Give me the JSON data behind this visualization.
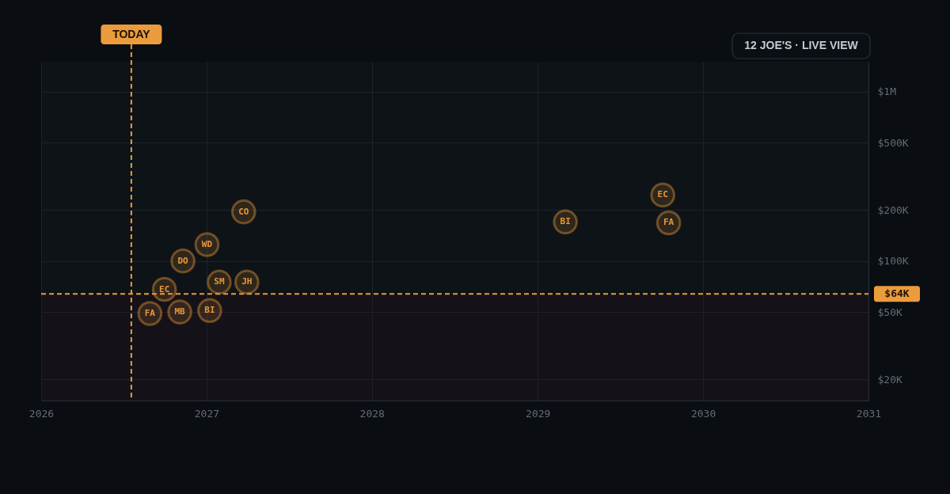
{
  "chart_data": {
    "type": "scatter",
    "marker": "circle",
    "color": "#e8973a",
    "x": [
      "2026-08-29",
      "2026-09-30",
      "2026-11-03",
      "2026-11-10",
      "2027-01-02",
      "2027-01-08",
      "2027-01-29",
      "2027-03-24",
      "2027-03-31",
      "2029-03-03",
      "2029-10-04",
      "2029-10-17"
    ],
    "values": [
      49000,
      68000,
      50000,
      100000,
      125000,
      51000,
      75000,
      195000,
      75000,
      170000,
      245000,
      168000
    ],
    "annotations": [
      {
        "text": "FA",
        "x": "2026-08-29",
        "y": 49000
      },
      {
        "text": "EC",
        "x": "2026-09-30",
        "y": 68000
      },
      {
        "text": "MB",
        "x": "2026-11-03",
        "y": 50000
      },
      {
        "text": "DO",
        "x": "2026-11-10",
        "y": 100000
      },
      {
        "text": "WD",
        "x": "2027-01-02",
        "y": 125000
      },
      {
        "text": "BI",
        "x": "2027-01-08",
        "y": 51000
      },
      {
        "text": "SM",
        "x": "2027-01-29",
        "y": 75000
      },
      {
        "text": "CO",
        "x": "2027-03-24",
        "y": 195000
      },
      {
        "text": "JH",
        "x": "2027-03-31",
        "y": 75000
      },
      {
        "text": "BI",
        "x": "2029-03-03",
        "y": 170000
      },
      {
        "text": "EC",
        "x": "2029-10-04",
        "y": 245000
      },
      {
        "text": "FA",
        "x": "2029-10-17",
        "y": 168000
      },
      "12 JOE'S · LIVE VIEW"
    ],
    "ref_lines": [
      {
        "axis": "x",
        "value": "2026-07-19",
        "label": "TODAY",
        "color": "#eb9b3c",
        "line_style": "dashed"
      },
      {
        "axis": "y",
        "value": 64000,
        "label": "$64K",
        "color": "#eb9b3c",
        "line_style": "dashed"
      }
    ],
    "bands": [
      {
        "axis": "y",
        "from": 15000,
        "to": 64000,
        "color": "#3a1020"
      }
    ],
    "xlim": [
      "2026",
      "2031"
    ],
    "xticks": [
      "2026",
      "2027",
      "2028",
      "2029",
      "2030",
      "2031"
    ],
    "ylim": [
      15000,
      1500000
    ],
    "yticks": [
      {
        "value": 20000,
        "label": "$20K"
      },
      {
        "value": 50000,
        "label": "$50K"
      },
      {
        "value": 100000,
        "label": "$100K"
      },
      {
        "value": 200000,
        "label": "$200K"
      },
      {
        "value": 500000,
        "label": "$500K"
      },
      {
        "value": 1000000,
        "label": "$1M"
      }
    ],
    "log": "y",
    "grid": true
  }
}
